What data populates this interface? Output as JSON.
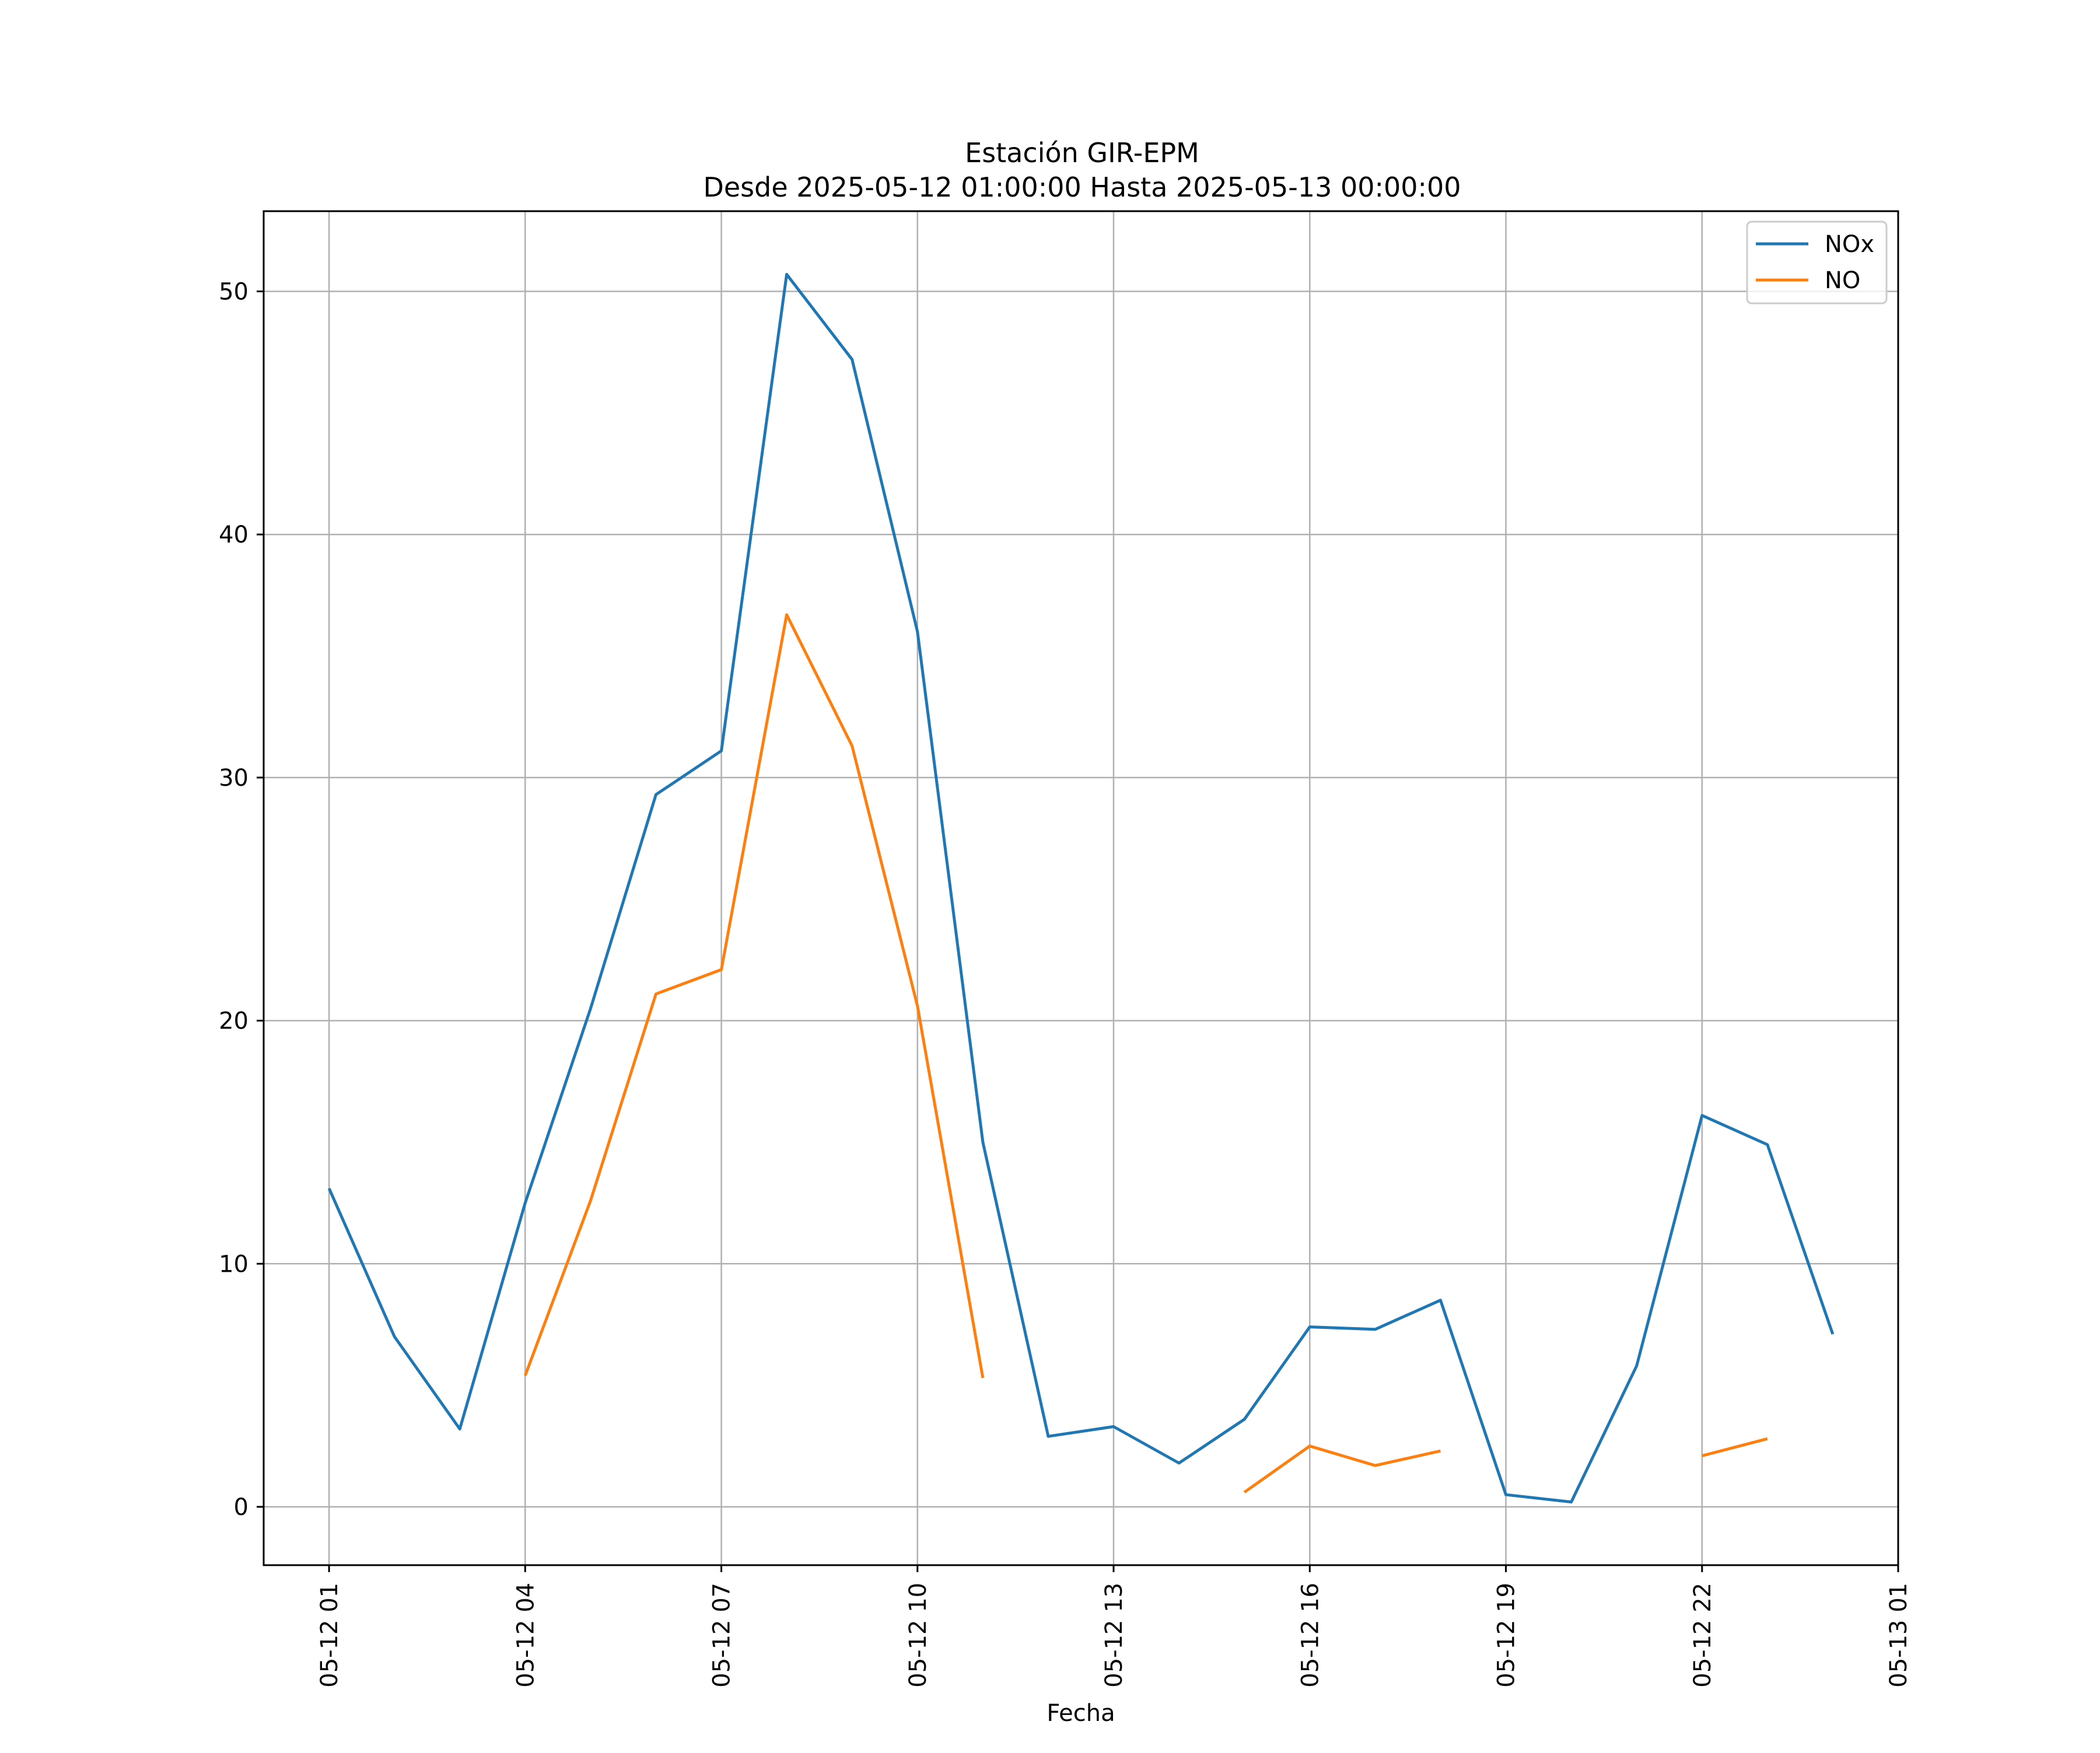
{
  "chart_data": {
    "type": "line",
    "title": "Estación GIR-EPM",
    "subtitle": "Desde 2025-05-12 01:00:00 Hasta 2025-05-13 00:00:00",
    "xlabel": "Fecha",
    "ylabel": "",
    "x": [
      "05-12 01",
      "05-12 02",
      "05-12 03",
      "05-12 04",
      "05-12 05",
      "05-12 06",
      "05-12 07",
      "05-12 08",
      "05-12 09",
      "05-12 10",
      "05-12 11",
      "05-12 12",
      "05-12 13",
      "05-12 14",
      "05-12 15",
      "05-12 16",
      "05-12 17",
      "05-12 18",
      "05-12 19",
      "05-12 20",
      "05-12 21",
      "05-12 22",
      "05-12 23",
      "05-13 00"
    ],
    "x_ticks": [
      "05-12 01",
      "05-12 04",
      "05-12 07",
      "05-12 10",
      "05-12 13",
      "05-12 16",
      "05-12 19",
      "05-12 22",
      "05-13 01"
    ],
    "y_ticks": [
      0,
      10,
      20,
      30,
      40,
      50
    ],
    "ylim": [
      -2.4,
      53.3
    ],
    "xlim": [
      "05-12 00",
      "05-13 01"
    ],
    "grid": true,
    "legend_position": "top-right",
    "series": [
      {
        "name": "NOx",
        "color": "#1f77b4",
        "values": [
          13.1,
          7.0,
          3.2,
          12.5,
          20.5,
          29.3,
          31.1,
          50.7,
          47.2,
          36.0,
          15.0,
          2.9,
          3.3,
          1.8,
          3.6,
          7.4,
          7.3,
          8.5,
          0.5,
          0.2,
          5.8,
          16.1,
          14.9,
          7.1
        ]
      },
      {
        "name": "NO",
        "color": "#ff7f0e",
        "values": [
          null,
          null,
          null,
          5.4,
          12.6,
          21.1,
          22.1,
          36.7,
          31.3,
          20.6,
          5.3,
          null,
          null,
          null,
          0.6,
          2.5,
          1.7,
          2.3,
          null,
          null,
          null,
          2.1,
          2.8,
          null
        ]
      }
    ]
  }
}
